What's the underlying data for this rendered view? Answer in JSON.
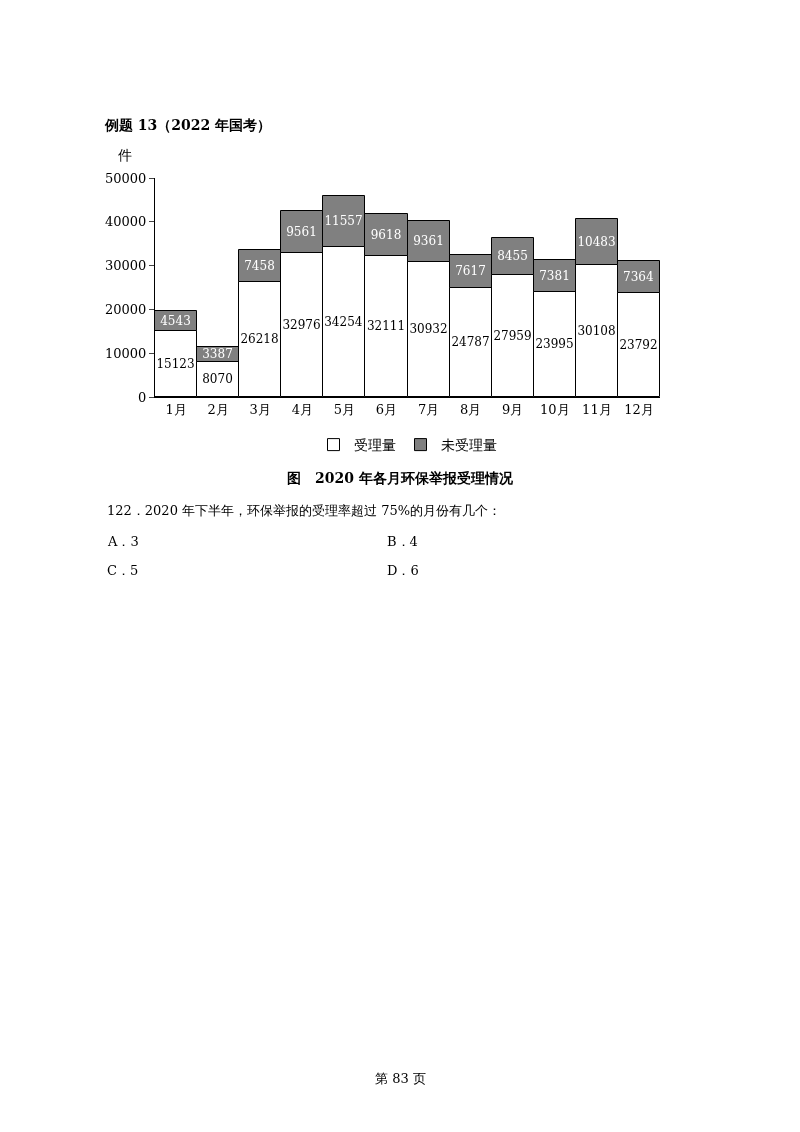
{
  "chart_data": {
    "type": "bar",
    "title": "例题 13（2022 年国考）",
    "ylabel": "件",
    "categories": [
      "1月",
      "2月",
      "3月",
      "4月",
      "5月",
      "6月",
      "7月",
      "8月",
      "9月",
      "10月",
      "11月",
      "12月"
    ],
    "series": [
      {
        "name": "受理量",
        "color": "#ffffff",
        "values": [
          15123,
          8070,
          26218,
          32976,
          34254,
          32111,
          30932,
          24787,
          27959,
          23995,
          30108,
          23792
        ]
      },
      {
        "name": "未受理量",
        "color": "#808080",
        "values": [
          4543,
          3387,
          7458,
          9561,
          11557,
          9618,
          9361,
          7617,
          8455,
          7381,
          10483,
          7364
        ]
      }
    ],
    "stacked": true,
    "data_labels": true,
    "ylim": [
      0,
      50000
    ],
    "yticks": [
      0,
      10000,
      20000,
      30000,
      40000,
      50000
    ],
    "legend": "bottom",
    "annotations": [
      "图　2020 年各月环保举报受理情况",
      "122．2020 年下半年，环保举报的受理率超过 75%的月份有几个：",
      "A．3",
      "B．4",
      "C．5",
      "D．6",
      "第 83 页"
    ]
  }
}
